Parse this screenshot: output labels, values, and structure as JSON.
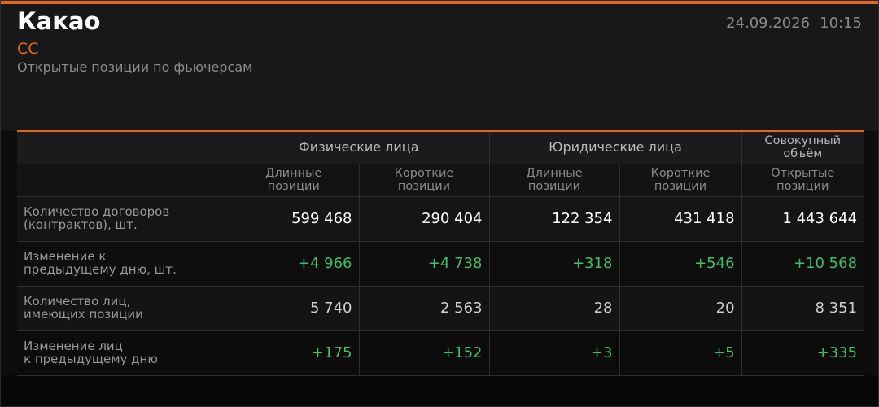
{
  "header": {
    "title": "Какао",
    "code": "CC",
    "subtitle": "Открытые позиции по фьючерсам",
    "date": "24.09.2026",
    "time": "10:15"
  },
  "table": {
    "groups": [
      "Физические лица",
      "Юридические лица",
      "Совокупный\nобъём"
    ],
    "columns": [
      "Длинные\nпозиции",
      "Короткие\nпозиции",
      "Длинные\nпозиции",
      "Короткие\nпозиции",
      "Открытые\nпозиции"
    ],
    "rows": [
      {
        "label": "Количество договоров\n(контрактов), шт.",
        "cells": [
          "599 468",
          "290 404",
          "122 354",
          "431 418",
          "1 443 644"
        ]
      },
      {
        "label": "Изменение к\nпредыдущему дню, шт.",
        "cells": [
          "+4 966",
          "+4 738",
          "+318",
          "+546",
          "+10 568"
        ]
      },
      {
        "label": "Количество лиц,\nимеющих позиции",
        "cells": [
          "5 740",
          "2 563",
          "28",
          "20",
          "8 351"
        ]
      },
      {
        "label": "Изменение лиц\nк предыдущему дню",
        "cells": [
          "+175",
          "+152",
          "+3",
          "+5",
          "+335"
        ]
      }
    ]
  }
}
